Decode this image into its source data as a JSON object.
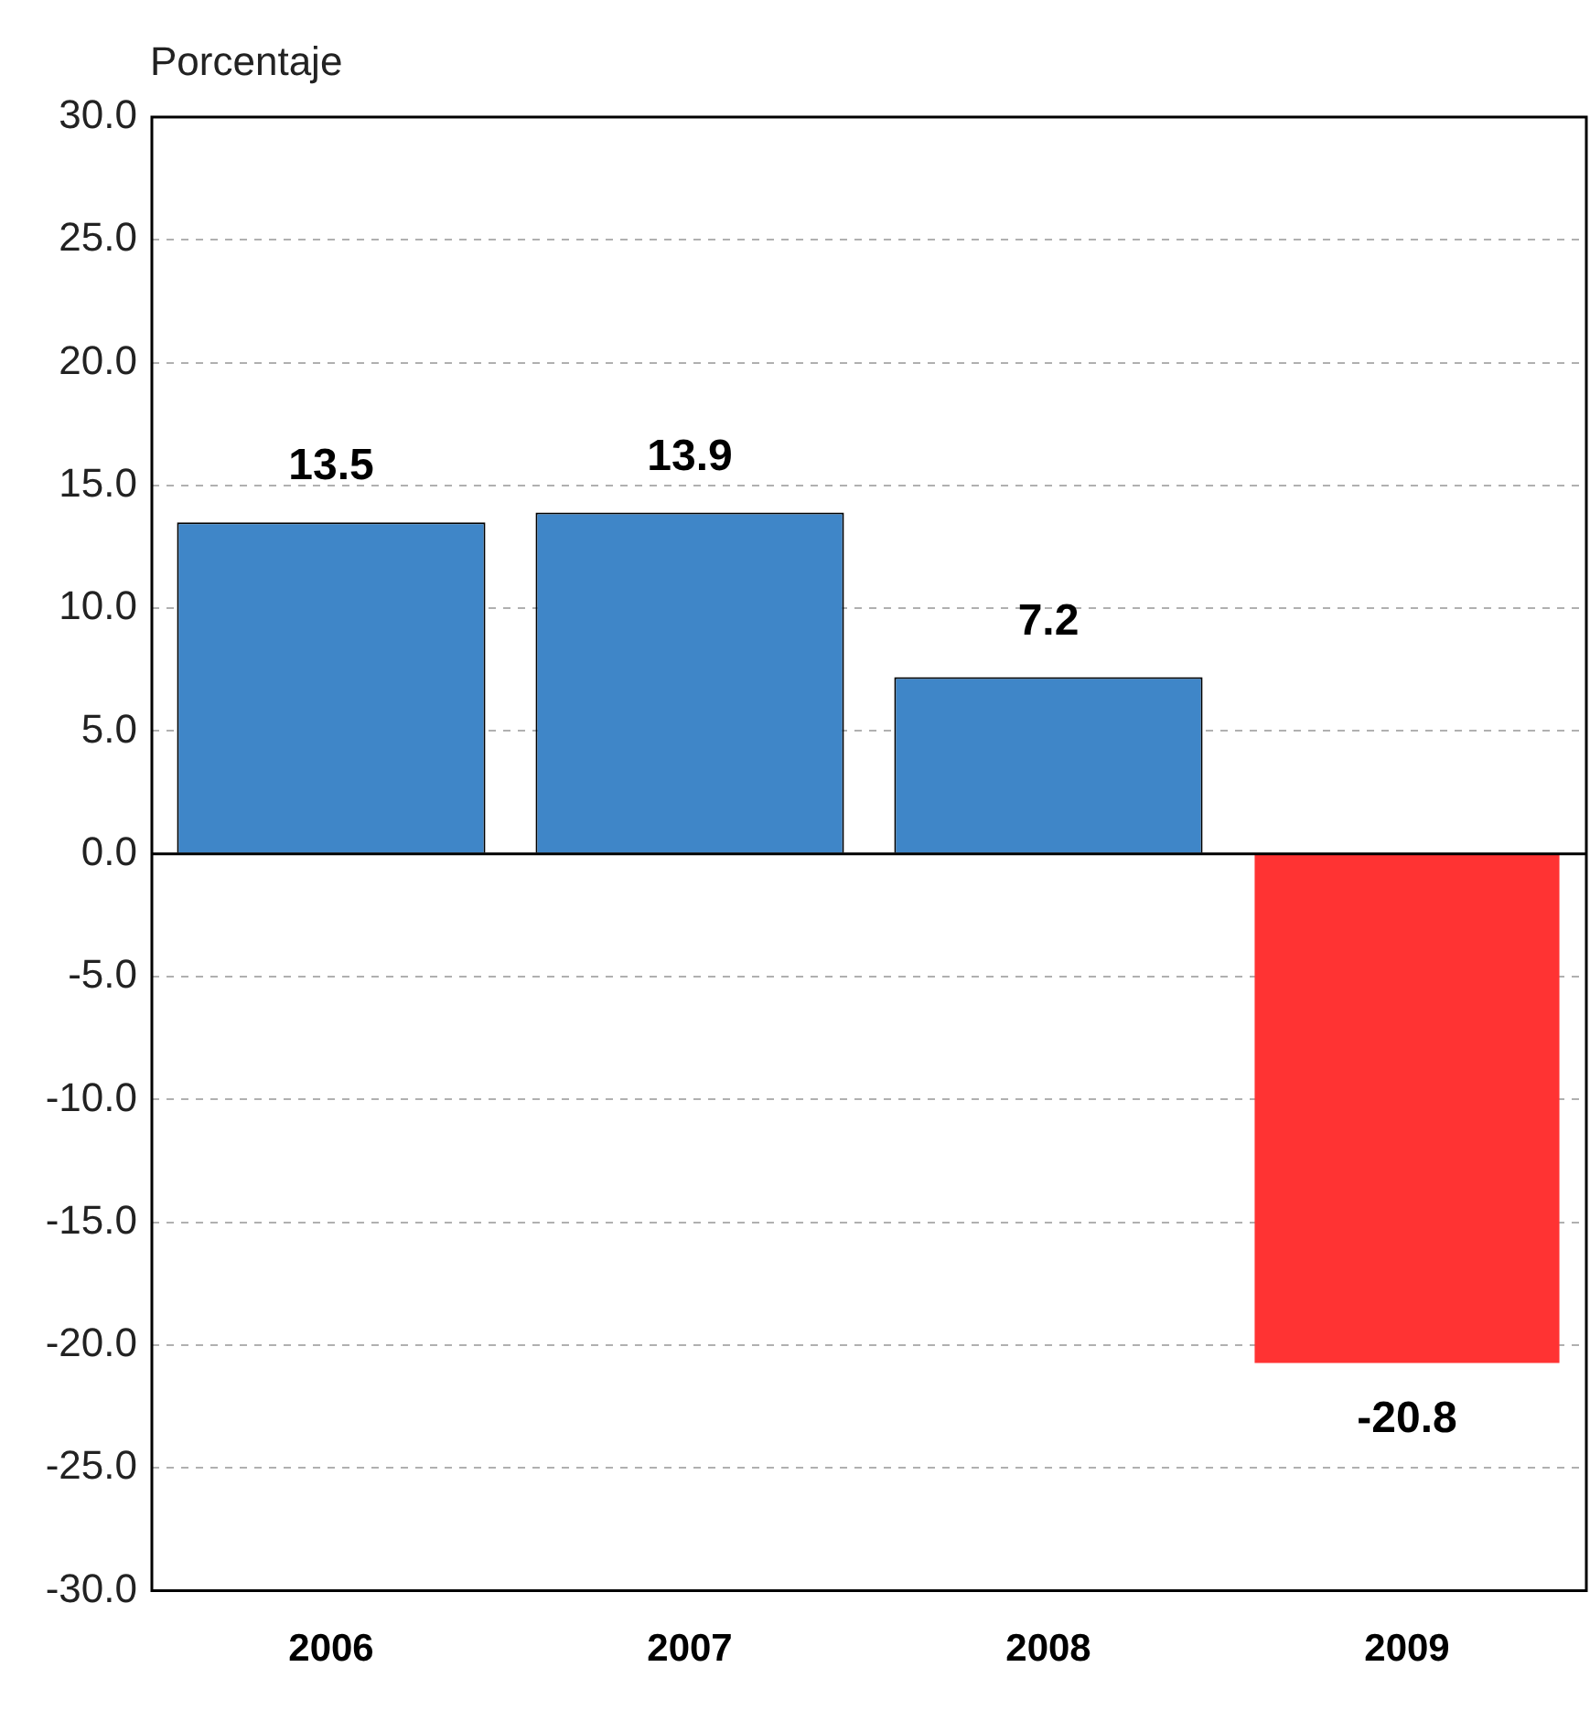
{
  "chart_data": {
    "type": "bar",
    "ylabel": "Porcentaje",
    "categories": [
      "2006",
      "2007",
      "2008",
      "2009"
    ],
    "values": [
      13.5,
      13.9,
      7.2,
      -20.8
    ],
    "colors": [
      "#3f86c8",
      "#3f86c8",
      "#3f86c8",
      "#ff3333"
    ],
    "ylim": [
      -30,
      30
    ],
    "yticks": [
      {
        "value": -30,
        "label": "-30.0"
      },
      {
        "value": -25,
        "label": "-25.0"
      },
      {
        "value": -20,
        "label": "-20.0"
      },
      {
        "value": -15,
        "label": "-15.0"
      },
      {
        "value": -10,
        "label": "-10.0"
      },
      {
        "value": -5,
        "label": "-5.0"
      },
      {
        "value": 0,
        "label": "0.0"
      },
      {
        "value": 5,
        "label": "5.0"
      },
      {
        "value": 10,
        "label": "10.0"
      },
      {
        "value": 15,
        "label": "15.0"
      },
      {
        "value": 20,
        "label": "20.0"
      },
      {
        "value": 25,
        "label": "25.0"
      },
      {
        "value": 30,
        "label": "30.0"
      }
    ],
    "grid": "y",
    "data_labels": true,
    "legend": false
  }
}
